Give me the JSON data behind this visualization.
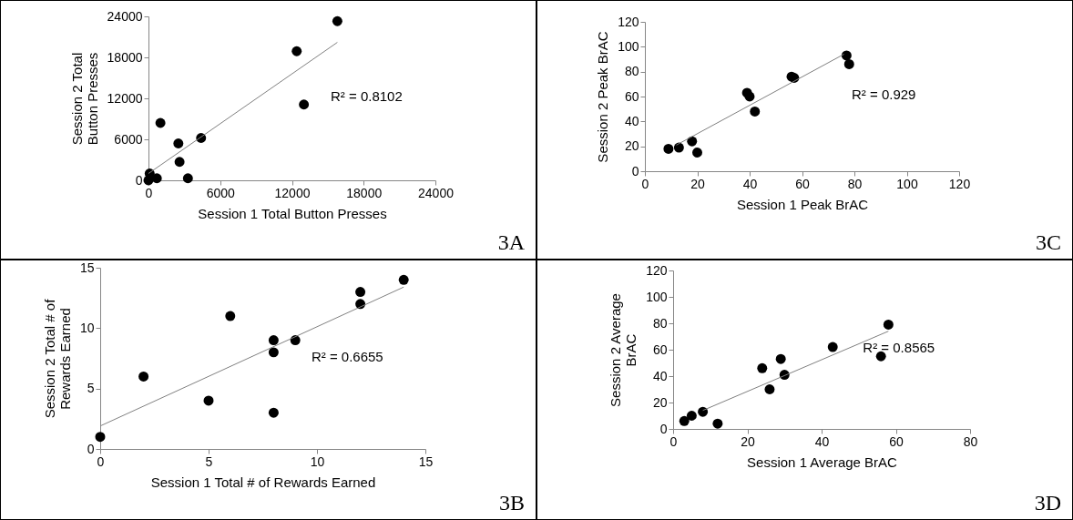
{
  "chart_data": [
    {
      "type": "scatter",
      "xlabel": "Session 1 Total Button Presses",
      "ylabel": "Session 2 Total Button Presses",
      "xlim": [
        0,
        24000
      ],
      "ylim": [
        0,
        24000
      ],
      "xticks": [
        0,
        6000,
        12000,
        18000,
        24000
      ],
      "yticks": [
        0,
        6000,
        12000,
        18000,
        24000
      ],
      "marker": "circle",
      "annotations": [
        "R² = 0.8102",
        "3A"
      ],
      "series": [
        {
          "color": "#000000",
          "x": [
            0,
            100,
            700,
            1000,
            2500,
            2600,
            3300,
            4400,
            12400,
            13000,
            15800
          ],
          "values": [
            0,
            1000,
            300,
            8400,
            5400,
            2700,
            300,
            6200,
            18900,
            11100,
            23300
          ]
        },
        {
          "type": "line",
          "marker": "none",
          "color": "#808080",
          "x": [
            0,
            15800
          ],
          "values": [
            1000,
            20200
          ]
        }
      ]
    },
    {
      "type": "scatter",
      "xlabel": "Session 1 Peak BrAC",
      "ylabel": "Session 2 Peak BrAC",
      "xlim": [
        0,
        120
      ],
      "ylim": [
        0,
        120
      ],
      "xticks": [
        0,
        20,
        40,
        60,
        80,
        100,
        120
      ],
      "yticks": [
        0,
        20,
        40,
        60,
        80,
        100,
        120
      ],
      "marker": "circle",
      "annotations": [
        "R² = 0.929",
        "3C"
      ],
      "series": [
        {
          "color": "#000000",
          "x": [
            9,
            13,
            18,
            20,
            39,
            40,
            42,
            56,
            57,
            77,
            78
          ],
          "values": [
            18,
            19,
            24,
            15,
            63,
            60,
            48,
            76,
            75,
            93,
            86
          ]
        },
        {
          "type": "line",
          "marker": "none",
          "color": "#808080",
          "x": [
            12,
            76
          ],
          "values": [
            21,
            94
          ]
        }
      ]
    },
    {
      "type": "scatter",
      "xlabel": "Session 1 Total # of Rewards Earned",
      "ylabel": "Session 2 Total # of Rewards Earned",
      "xlim": [
        0,
        15
      ],
      "ylim": [
        0,
        15
      ],
      "xticks": [
        0,
        5,
        10,
        15
      ],
      "yticks": [
        0,
        5,
        10,
        15
      ],
      "marker": "circle",
      "annotations": [
        "R² = 0.6655",
        "3B"
      ],
      "series": [
        {
          "color": "#000000",
          "x": [
            0,
            2,
            5,
            6,
            8,
            8,
            8,
            9,
            12,
            12,
            14
          ],
          "values": [
            1,
            6,
            4,
            11,
            9,
            8,
            3,
            9,
            13,
            12,
            14
          ]
        },
        {
          "type": "line",
          "marker": "none",
          "color": "#808080",
          "x": [
            0,
            14
          ],
          "values": [
            1.9,
            13.4
          ]
        }
      ]
    },
    {
      "type": "scatter",
      "xlabel": "Session 1 Average BrAC",
      "ylabel": "Session 2 Average BrAC",
      "xlim": [
        0,
        80
      ],
      "ylim": [
        0,
        120
      ],
      "xticks": [
        0,
        20,
        40,
        60,
        80
      ],
      "yticks": [
        0,
        20,
        40,
        60,
        80,
        100,
        120
      ],
      "marker": "circle",
      "annotations": [
        "R² = 0.8565",
        "3D"
      ],
      "series": [
        {
          "color": "#000000",
          "x": [
            3,
            5,
            8,
            12,
            24,
            26,
            29,
            30,
            43,
            56,
            58
          ],
          "values": [
            6,
            10,
            13,
            4,
            46,
            30,
            53,
            41,
            62,
            55,
            79
          ]
        },
        {
          "type": "line",
          "marker": "none",
          "color": "#808080",
          "x": [
            8,
            58
          ],
          "values": [
            14,
            74
          ]
        }
      ]
    }
  ]
}
